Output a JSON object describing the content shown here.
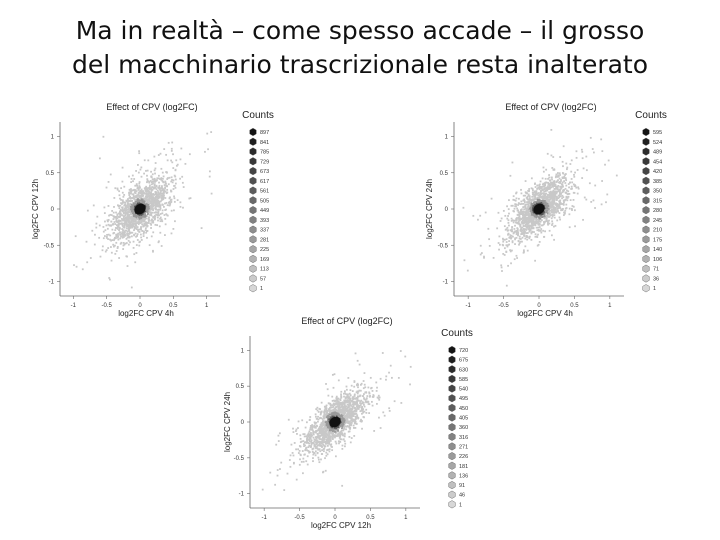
{
  "slide": {
    "title_line1": "Ma in realtà – come spesso accade – il grosso",
    "title_line2": "del macchinario trascrizionale resta inalterato"
  },
  "chart_data": [
    {
      "type": "scatter",
      "title": "Effect of CPV (log2FC)",
      "xlabel": "log2FC CPV 4h",
      "ylabel": "log2FC CPV 12h",
      "xlim": [
        -1.2,
        1.2
      ],
      "ylim": [
        -1.2,
        1.2
      ],
      "xticks": [
        "-1",
        "-0.5",
        "0",
        "0.5",
        "1"
      ],
      "yticks": [
        "1",
        "0.5",
        "0",
        "-0.5",
        "-1"
      ],
      "correlation": 0.6,
      "spread": 0.22,
      "legend_title": "Counts",
      "legend_position": "right",
      "counts": [
        "897",
        "841",
        "785",
        "729",
        "673",
        "617",
        "561",
        "505",
        "449",
        "393",
        "337",
        "281",
        "225",
        "169",
        "113",
        "57",
        "1"
      ]
    },
    {
      "type": "scatter",
      "title": "Effect of CPV (log2FC)",
      "xlabel": "log2FC CPV 4h",
      "ylabel": "log2FC CPV 24h",
      "xlim": [
        -1.2,
        1.2
      ],
      "ylim": [
        -1.2,
        1.2
      ],
      "xticks": [
        "-1",
        "-0.5",
        "0",
        "0.5",
        "1"
      ],
      "yticks": [
        "1",
        "0.5",
        "0",
        "-0.5",
        "-1"
      ],
      "correlation": 0.7,
      "spread": 0.22,
      "legend_title": "Counts",
      "legend_position": "right",
      "counts": [
        "595",
        "524",
        "489",
        "454",
        "420",
        "385",
        "350",
        "315",
        "280",
        "245",
        "210",
        "175",
        "140",
        "106",
        "71",
        "36",
        "1"
      ]
    },
    {
      "type": "scatter",
      "title": "Effect of CPV (log2FC)",
      "xlabel": "log2FC CPV 12h",
      "ylabel": "log2FC CPV 24h",
      "xlim": [
        -1.2,
        1.2
      ],
      "ylim": [
        -1.2,
        1.2
      ],
      "xticks": [
        "-1",
        "-0.5",
        "0",
        "0.5",
        "1"
      ],
      "yticks": [
        "1",
        "0.5",
        "0",
        "-0.5",
        "-1"
      ],
      "correlation": 0.75,
      "spread": 0.22,
      "legend_title": "Counts",
      "legend_position": "right",
      "counts": [
        "720",
        "675",
        "630",
        "585",
        "540",
        "495",
        "450",
        "405",
        "360",
        "316",
        "271",
        "226",
        "181",
        "136",
        "91",
        "46",
        "1"
      ]
    }
  ]
}
